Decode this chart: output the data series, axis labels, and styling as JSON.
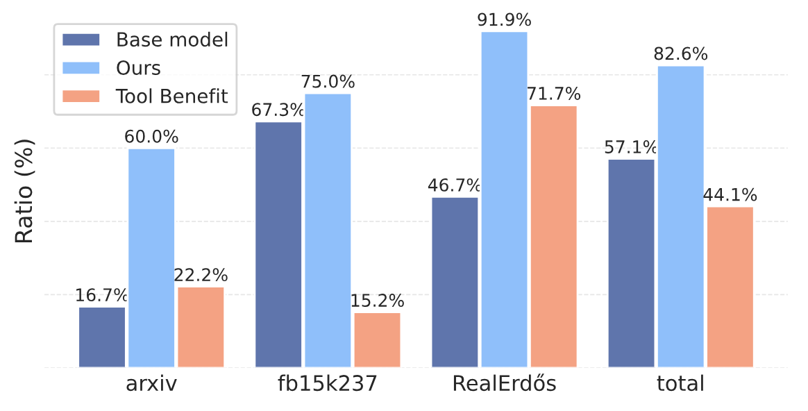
{
  "chart_data": {
    "type": "bar",
    "ylabel": "Ratio (%)",
    "categories": [
      "arxiv",
      "fb15k237",
      "RealErdős",
      "total"
    ],
    "series": [
      {
        "name": "Base model",
        "color": "#5f75ac",
        "values": [
          16.7,
          67.3,
          46.7,
          57.1
        ],
        "value_labels": [
          "16.7%",
          "67.3%",
          "46.7%",
          "57.1%"
        ]
      },
      {
        "name": "Ours",
        "color": "#8fbffa",
        "values": [
          60.0,
          75.0,
          91.9,
          82.6
        ],
        "value_labels": [
          "60.0%",
          "75.0%",
          "91.9%",
          "82.6%"
        ]
      },
      {
        "name": "Tool Benefit",
        "color": "#f4a283",
        "values": [
          22.2,
          15.2,
          71.7,
          44.1
        ],
        "value_labels": [
          "22.2%",
          "15.2%",
          "71.7%",
          "44.1%"
        ]
      }
    ],
    "tick_labels": "x",
    "grid": "y",
    "legend": "top left"
  }
}
